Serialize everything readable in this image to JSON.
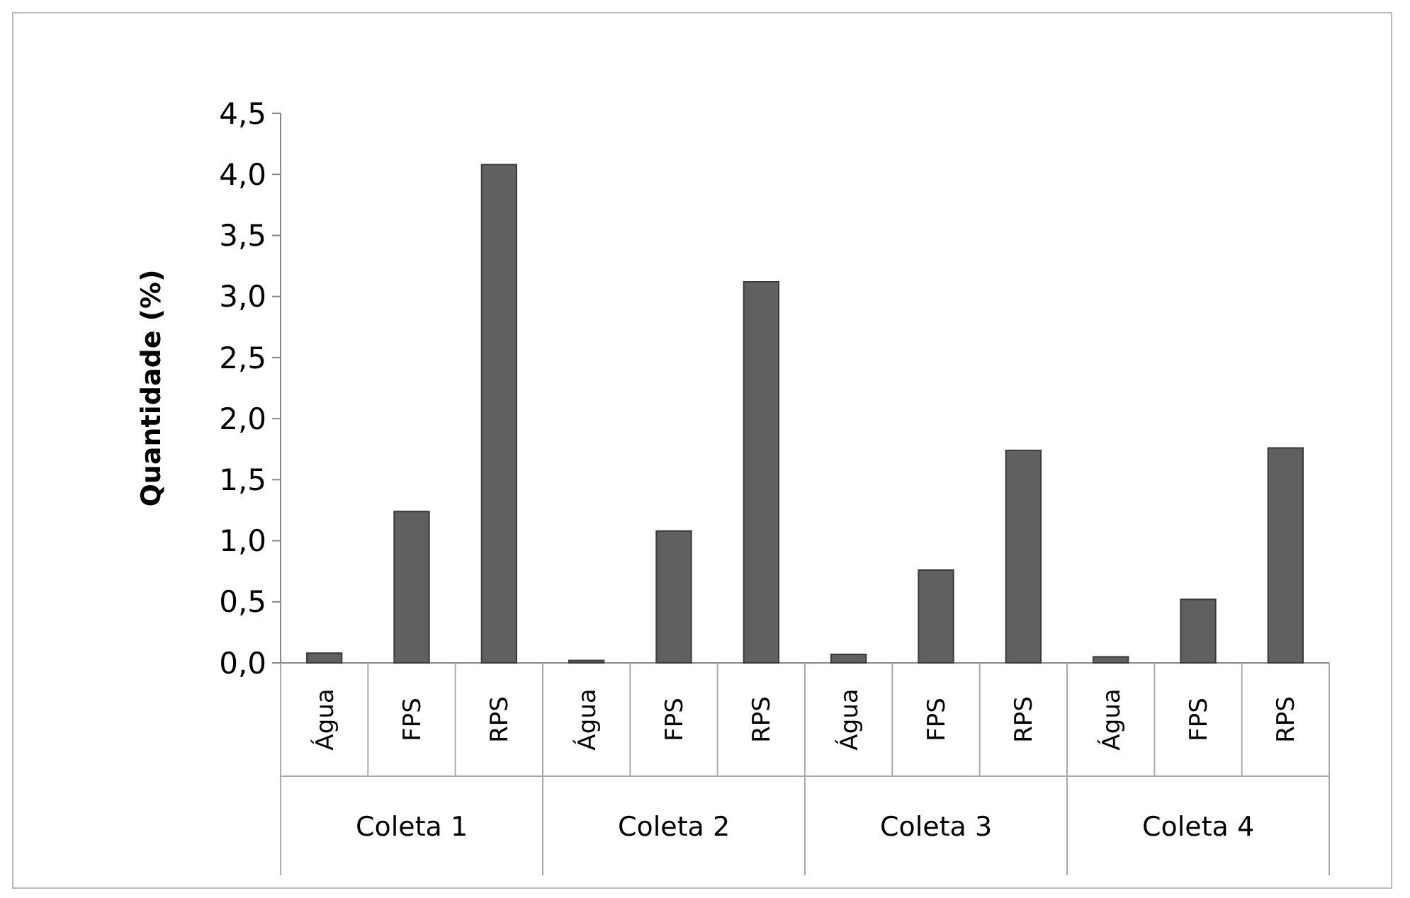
{
  "chart_data": {
    "type": "bar",
    "ylabel": "Quantidade (%)",
    "categories": [
      "Água",
      "FPS",
      "RPS",
      "Água",
      "FPS",
      "RPS",
      "Água",
      "FPS",
      "RPS",
      "Água",
      "FPS",
      "RPS"
    ],
    "values": [
      0.08,
      1.24,
      4.08,
      0.02,
      1.08,
      3.12,
      0.07,
      0.76,
      1.74,
      0.05,
      0.52,
      1.76
    ],
    "color": "#606060",
    "ylim": [
      0,
      4.5
    ],
    "yticks": [
      {
        "value": 0,
        "label": "0,0"
      },
      {
        "value": 0.5,
        "label": "0,5"
      },
      {
        "value": 1,
        "label": "1,0"
      },
      {
        "value": 1.5,
        "label": "1,5"
      },
      {
        "value": 2,
        "label": "2,0"
      },
      {
        "value": 2.5,
        "label": "2,5"
      },
      {
        "value": 3,
        "label": "3,0"
      },
      {
        "value": 3.5,
        "label": "3,5"
      },
      {
        "value": 4,
        "label": "4,0"
      },
      {
        "value": 4.5,
        "label": "4,5"
      }
    ],
    "annotations": [
      "Coleta 1",
      "Coleta 2",
      "Coleta 3",
      "Coleta 4"
    ],
    "grid": false
  }
}
